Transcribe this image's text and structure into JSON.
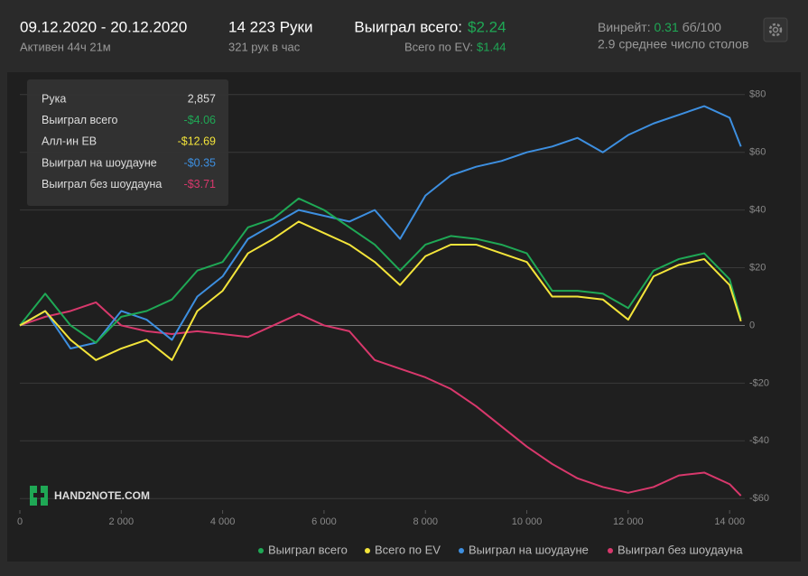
{
  "header": {
    "date_range": "09.12.2020 - 20.12.2020",
    "active": "Активен 44ч 21м",
    "hands": "14 223 Руки",
    "hands_per_hour": "321 рук в час",
    "won_label": "Выиграл всего:",
    "won_value": "$2.24",
    "ev_label": "Всего по EV:",
    "ev_value": "$1.44",
    "winrate_label": "Винрейт:",
    "winrate_value": "0.31",
    "winrate_unit": "бб/100",
    "tables": "2.9 среднее число столов"
  },
  "tooltip": {
    "rows": [
      [
        "Рука",
        "2,857"
      ],
      [
        "Выиграл всего",
        "-$4.06"
      ],
      [
        "Алл-ин EB",
        "-$12.69"
      ],
      [
        "Выиграл на шоудауне",
        "-$0.35"
      ],
      [
        "Выиграл без шоудауна",
        "-$3.71"
      ]
    ]
  },
  "logo": "HAND2NOTE.COM",
  "chart_data": {
    "type": "line",
    "x": [
      0,
      500,
      1000,
      1500,
      2000,
      2500,
      3000,
      3500,
      4000,
      4500,
      5000,
      5500,
      6000,
      6500,
      7000,
      7500,
      8000,
      8500,
      9000,
      9500,
      10000,
      10500,
      11000,
      11500,
      12000,
      12500,
      13000,
      13500,
      14000,
      14223
    ],
    "series": [
      {
        "name": "Выиграл без шоудауна",
        "color": "#d8386c",
        "values": [
          0,
          3,
          5,
          8,
          0,
          -2,
          -3,
          -2,
          -3,
          -4,
          0,
          4,
          0,
          -2,
          -12,
          -15,
          -18,
          -22,
          -28,
          -35,
          -42,
          -48,
          -53,
          -56,
          -58,
          -56,
          -52,
          -51,
          -55,
          -59
        ]
      },
      {
        "name": "Выиграл на шоудауне",
        "color": "#3d8fe0",
        "values": [
          0,
          5,
          -8,
          -6,
          5,
          2,
          -5,
          10,
          17,
          30,
          35,
          40,
          38,
          36,
          40,
          30,
          45,
          52,
          55,
          57,
          60,
          62,
          65,
          60,
          66,
          70,
          73,
          76,
          72,
          62
        ]
      },
      {
        "name": "Выиграл всего",
        "color": "#1fa855",
        "values": [
          0,
          11,
          0,
          -6,
          3,
          5,
          9,
          19,
          22,
          34,
          37,
          44,
          40,
          34,
          28,
          19,
          28,
          31,
          30,
          28,
          25,
          12,
          12,
          11,
          6,
          19,
          23,
          25,
          16,
          2.24
        ]
      },
      {
        "name": "Всего по EV",
        "color": "#f3e43a",
        "values": [
          0,
          5,
          -5,
          -12,
          -8,
          -5,
          -12,
          5,
          12,
          25,
          30,
          36,
          32,
          28,
          22,
          14,
          24,
          28,
          28,
          25,
          22,
          10,
          10,
          9,
          2,
          17,
          21,
          23,
          14,
          1.44
        ]
      }
    ],
    "legend_order": [
      2,
      3,
      1,
      0
    ],
    "xlim": [
      0,
      14300
    ],
    "xticks": [
      0,
      {
        "value": 2000,
        "label": "2 000"
      },
      {
        "value": 4000,
        "label": "4 000"
      },
      {
        "value": 6000,
        "label": "6 000"
      },
      {
        "value": 8000,
        "label": "8 000"
      },
      {
        "value": 10000,
        "label": "10 000"
      },
      {
        "value": 12000,
        "label": "12 000"
      },
      {
        "value": 14000,
        "label": "14 000"
      }
    ],
    "ylim": [
      -64,
      84
    ],
    "yticks": [
      {
        "value": -60,
        "label": "-$60"
      },
      {
        "value": -40,
        "label": "-$40"
      },
      {
        "value": -20,
        "label": "-$20"
      },
      0,
      {
        "value": 20,
        "label": "$20"
      },
      {
        "value": 40,
        "label": "$40"
      },
      {
        "value": 60,
        "label": "$60"
      },
      {
        "value": 80,
        "label": "$80"
      }
    ],
    "grid": true
  }
}
